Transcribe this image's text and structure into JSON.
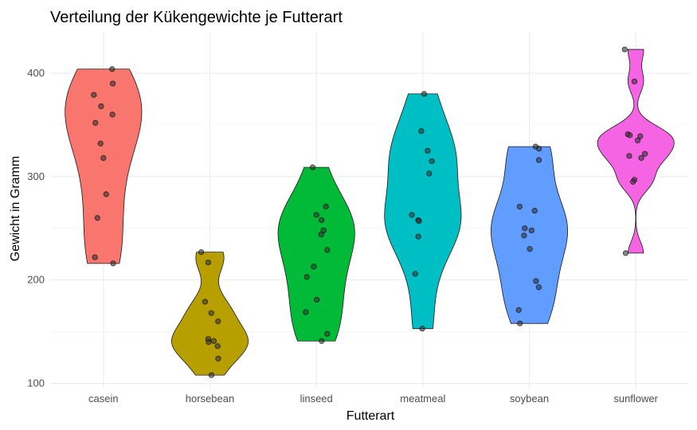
{
  "chart_data": {
    "type": "violin",
    "title": "Verteilung der Kükengewichte je Futterart",
    "xlabel": "Futterart",
    "ylabel": "Gewicht in Gramm",
    "ylim": [
      95,
      440
    ],
    "yticks": [
      100,
      200,
      300,
      400
    ],
    "grid": true,
    "legend": "none",
    "categories": [
      "casein",
      "horsebean",
      "linseed",
      "meatmeal",
      "soybean",
      "sunflower"
    ],
    "series": [
      {
        "category": "casein",
        "color": "#F8766D",
        "values": [
          404,
          390,
          379,
          368,
          360,
          352,
          332,
          318,
          283,
          260,
          222,
          216
        ]
      },
      {
        "category": "horsebean",
        "color": "#B79F00",
        "values": [
          227,
          217,
          179,
          168,
          160,
          143,
          141,
          140,
          136,
          124,
          108
        ]
      },
      {
        "category": "linseed",
        "color": "#00BA38",
        "values": [
          309,
          271,
          263,
          258,
          248,
          244,
          229,
          213,
          203,
          181,
          169,
          148,
          141
        ]
      },
      {
        "category": "meatmeal",
        "color": "#00BFC4",
        "values": [
          380,
          344,
          325,
          315,
          303,
          263,
          258,
          257,
          242,
          206,
          153
        ]
      },
      {
        "category": "soybean",
        "color": "#619CFF",
        "values": [
          329,
          327,
          316,
          271,
          267,
          250,
          248,
          243,
          230,
          199,
          193,
          171,
          158
        ]
      },
      {
        "category": "sunflower",
        "color": "#F564E3",
        "values": [
          423,
          392,
          341,
          340,
          339,
          335,
          322,
          320,
          318,
          297,
          295,
          226
        ]
      }
    ]
  }
}
